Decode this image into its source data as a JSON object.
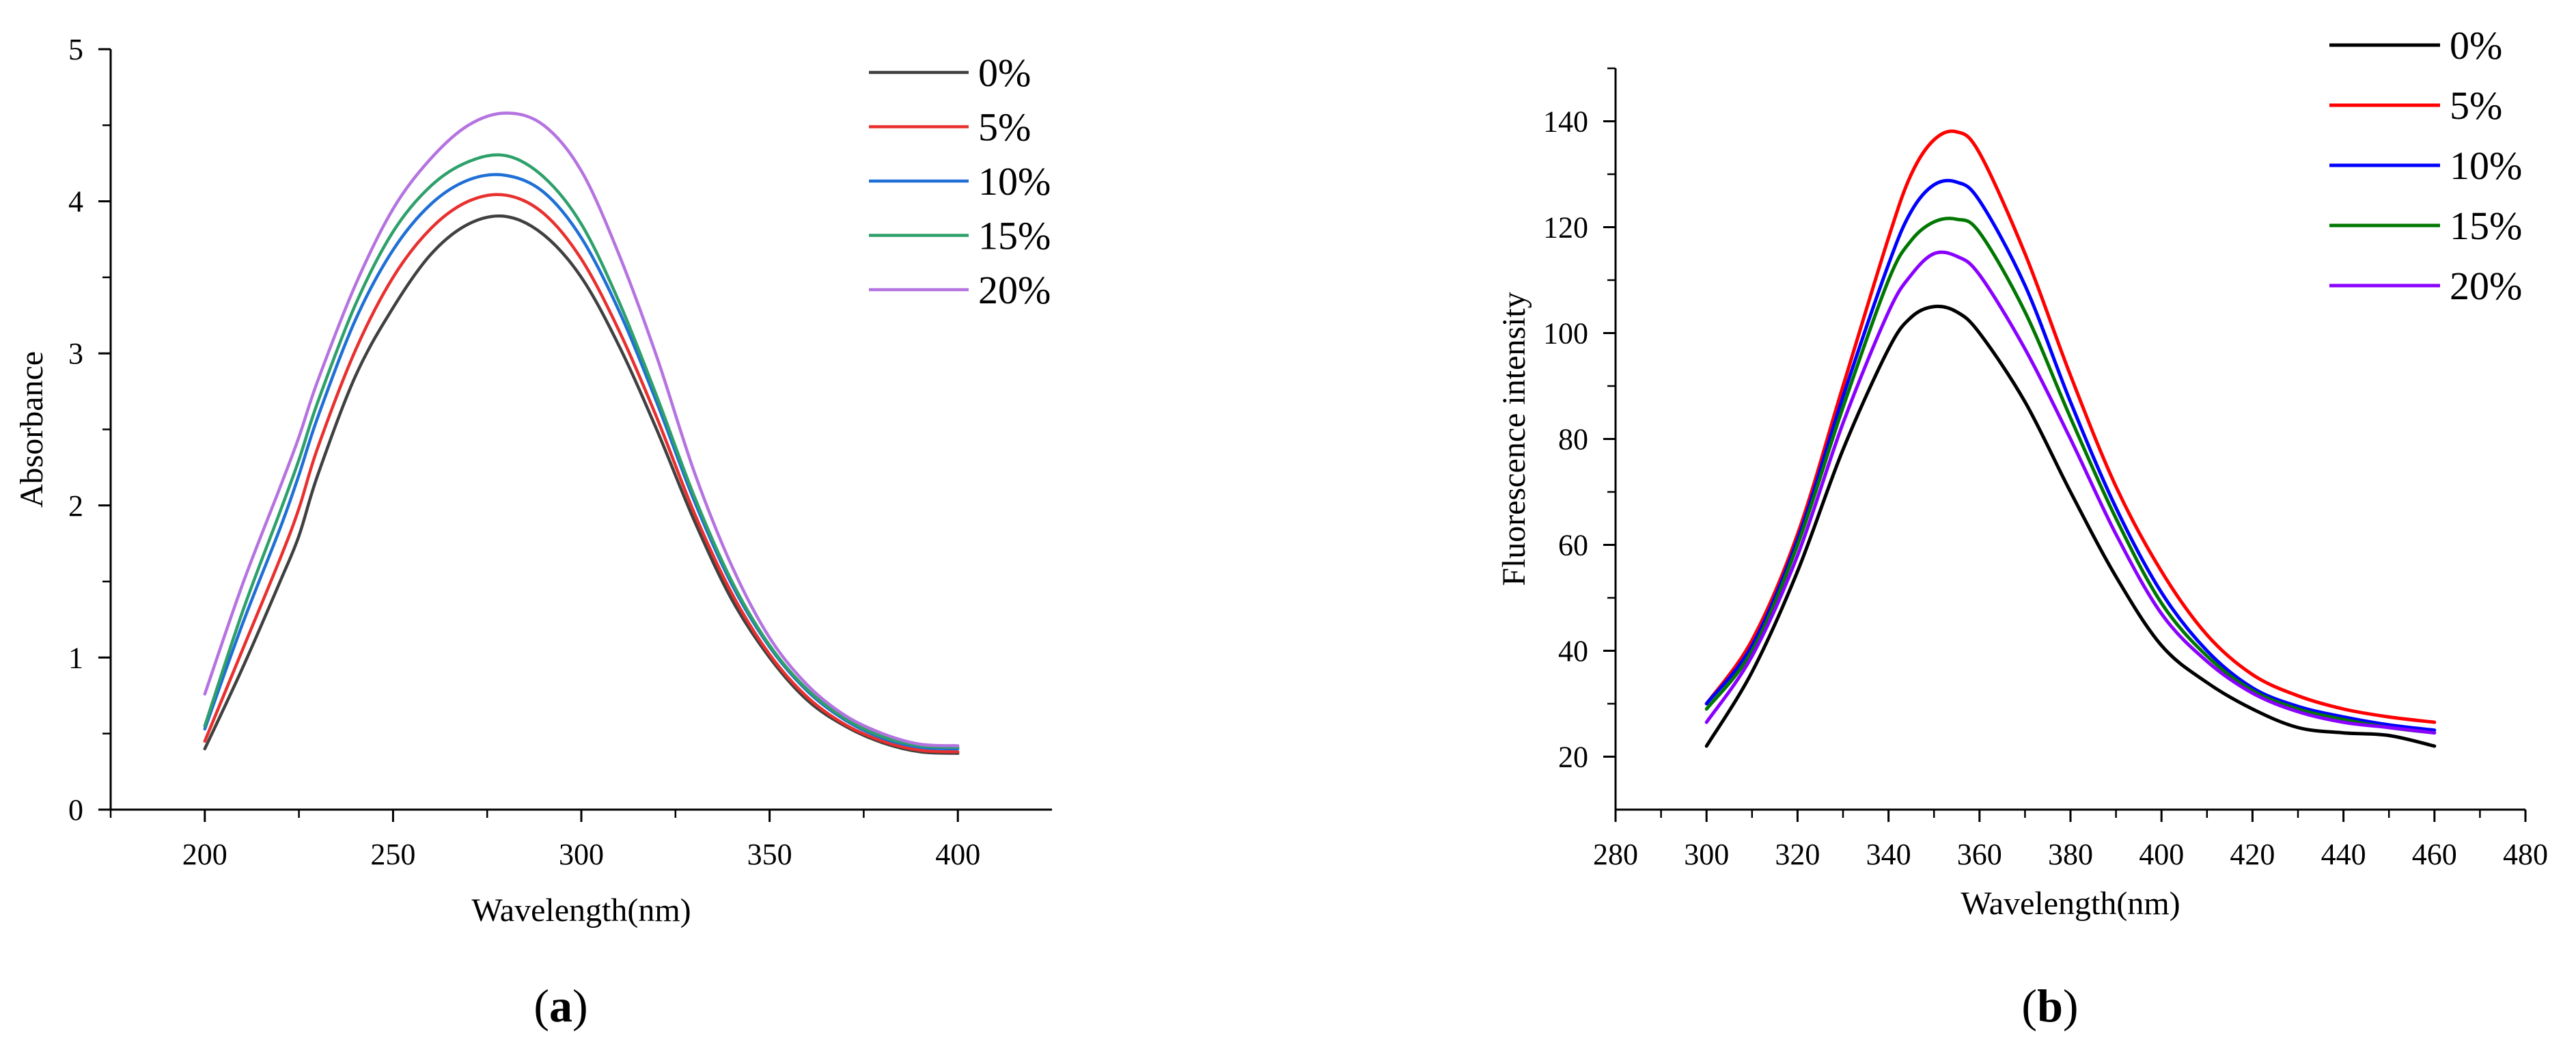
{
  "chart_data": [
    {
      "type": "line",
      "panel_label": "a",
      "xlabel": "Wavelength(nm)",
      "ylabel": "Absorbance",
      "xlim": [
        175,
        425
      ],
      "ylim": [
        0,
        5
      ],
      "xticks": [
        200,
        250,
        300,
        350,
        400
      ],
      "yticks": [
        0,
        1,
        2,
        3,
        4,
        5
      ],
      "grid": false,
      "legend_position": "top-right",
      "x": [
        200,
        210,
        220,
        225,
        230,
        240,
        250,
        260,
        270,
        280,
        290,
        300,
        310,
        320,
        330,
        340,
        350,
        360,
        370,
        380,
        390,
        400
      ],
      "series": [
        {
          "name": "0%",
          "color": "#404040",
          "values": [
            0.4,
            0.93,
            1.5,
            1.8,
            2.2,
            2.85,
            3.3,
            3.65,
            3.85,
            3.9,
            3.78,
            3.5,
            3.05,
            2.5,
            1.9,
            1.38,
            1.0,
            0.72,
            0.55,
            0.44,
            0.38,
            0.37
          ]
        },
        {
          "name": "5%",
          "color": "#e8302e",
          "values": [
            0.45,
            1.05,
            1.65,
            1.98,
            2.38,
            3.02,
            3.5,
            3.82,
            4.0,
            4.04,
            3.92,
            3.62,
            3.15,
            2.58,
            1.95,
            1.42,
            1.02,
            0.74,
            0.56,
            0.45,
            0.39,
            0.38
          ]
        },
        {
          "name": "10%",
          "color": "#1f6fd6",
          "values": [
            0.53,
            1.22,
            1.85,
            2.2,
            2.58,
            3.22,
            3.68,
            3.98,
            4.14,
            4.17,
            4.06,
            3.76,
            3.28,
            2.68,
            2.03,
            1.48,
            1.07,
            0.78,
            0.59,
            0.47,
            0.41,
            0.4
          ]
        },
        {
          "name": "15%",
          "color": "#2ea06a",
          "values": [
            0.55,
            1.3,
            1.96,
            2.3,
            2.68,
            3.32,
            3.8,
            4.1,
            4.26,
            4.3,
            4.16,
            3.85,
            3.34,
            2.72,
            2.06,
            1.5,
            1.08,
            0.79,
            0.6,
            0.48,
            0.42,
            0.41
          ]
        },
        {
          "name": "20%",
          "color": "#b573e0",
          "values": [
            0.76,
            1.48,
            2.12,
            2.45,
            2.82,
            3.45,
            3.95,
            4.28,
            4.5,
            4.58,
            4.5,
            4.2,
            3.65,
            2.98,
            2.22,
            1.6,
            1.13,
            0.82,
            0.62,
            0.5,
            0.43,
            0.42
          ]
        }
      ]
    },
    {
      "type": "line",
      "panel_label": "b",
      "xlabel": "Wavelength(nm)",
      "ylabel": "Fluorescence intensity",
      "xlim": [
        280,
        480
      ],
      "ylim": [
        10,
        150
      ],
      "xticks": [
        280,
        300,
        320,
        340,
        360,
        380,
        400,
        420,
        440,
        460,
        480
      ],
      "yticks": [
        20,
        40,
        60,
        80,
        100,
        120,
        140
      ],
      "grid": false,
      "legend_position": "top-right",
      "x": [
        300,
        310,
        320,
        330,
        340,
        345,
        350,
        355,
        360,
        370,
        380,
        390,
        400,
        410,
        420,
        430,
        440,
        450,
        460
      ],
      "series": [
        {
          "name": "0%",
          "color": "#000000",
          "values": [
            22,
            36,
            55,
            78,
            97,
            103,
            105,
            104,
            100,
            87,
            70,
            54,
            41,
            34,
            29,
            25.5,
            24.5,
            24,
            22
          ]
        },
        {
          "name": "5%",
          "color": "#ff0000",
          "values": [
            30,
            42,
            62,
            90,
            118,
            130,
            136.5,
            138,
            134,
            115,
            92,
            71,
            55,
            43,
            35.5,
            31.5,
            29,
            27.5,
            26.5
          ]
        },
        {
          "name": "10%",
          "color": "#0000ff",
          "values": [
            30,
            41,
            61,
            88,
            113,
            123,
            128,
            128.5,
            125,
            109,
            87,
            67,
            51,
            40,
            33,
            29.5,
            27.5,
            26,
            25
          ]
        },
        {
          "name": "15%",
          "color": "#007700",
          "values": [
            29,
            40,
            60,
            86,
            110,
            117.5,
            121,
            121.5,
            119,
            104,
            84,
            65,
            49,
            39,
            32.5,
            29,
            27,
            25.5,
            24.5
          ]
        },
        {
          "name": "20%",
          "color": "#8a00ff",
          "values": [
            26.5,
            39,
            58,
            83,
            104,
            111,
            115,
            114.5,
            111,
            97,
            80,
            62,
            47,
            38,
            32,
            28.5,
            26.5,
            25.5,
            24.5
          ]
        }
      ]
    }
  ]
}
